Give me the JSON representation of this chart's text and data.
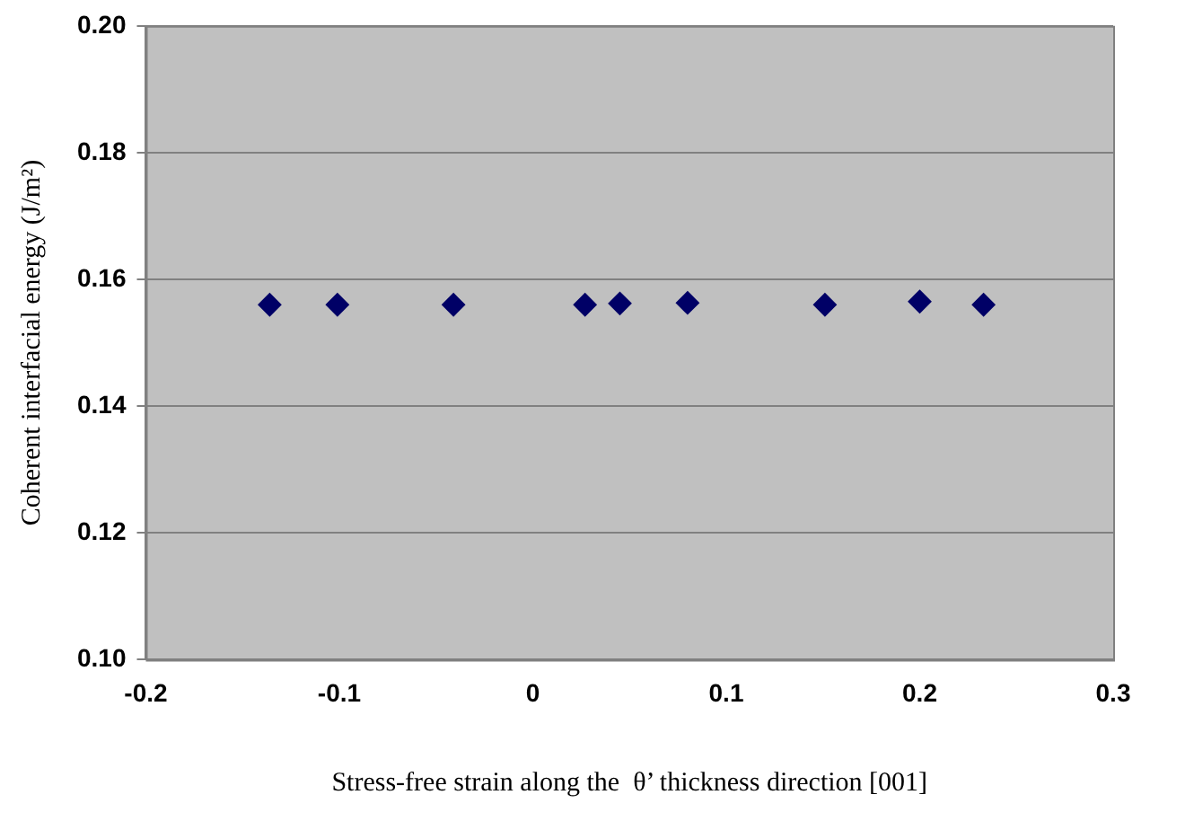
{
  "chart_data": {
    "type": "scatter",
    "xlabel": "Stress-free strain along the  θ’ thickness direction [001]",
    "ylabel": "Coherent interfacial energy (J/m²)",
    "x": [
      -0.136,
      -0.101,
      -0.041,
      0.027,
      0.045,
      0.08,
      0.151,
      0.2,
      0.233
    ],
    "series": [
      {
        "color": "#000066",
        "values": [
          0.156,
          0.156,
          0.156,
          0.156,
          0.1562,
          0.1563,
          0.156,
          0.1565,
          0.156
        ]
      }
    ],
    "xlim": [
      -0.2,
      0.3
    ],
    "xticks": [
      -0.2,
      -0.1,
      0,
      0.1,
      0.2,
      0.3
    ],
    "ylim": [
      0.1,
      0.2
    ],
    "yticks": [
      {
        "value": 0.1,
        "label": "0.10"
      },
      {
        "value": 0.12,
        "label": "0.12"
      },
      {
        "value": 0.14,
        "label": "0.14"
      },
      {
        "value": 0.16,
        "label": "0.16"
      },
      {
        "value": 0.18,
        "label": "0.18"
      },
      {
        "value": 0.2,
        "label": "0.20"
      }
    ],
    "grid": "y",
    "legend": false,
    "marker": "diamond"
  }
}
